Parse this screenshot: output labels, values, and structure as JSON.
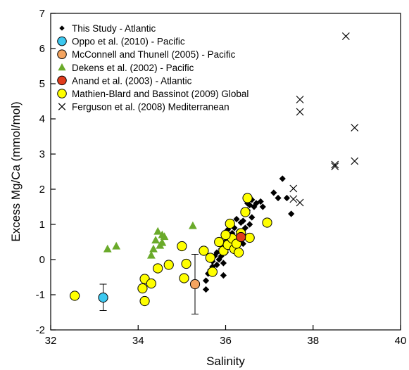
{
  "chart_data": {
    "type": "scatter",
    "xlabel": "Salinity",
    "ylabel": "Excess Mg/Ca (mmol/mol)",
    "xlim": [
      32,
      40
    ],
    "ylim": [
      -2,
      7
    ],
    "x_ticks": [
      32,
      34,
      36,
      38,
      40
    ],
    "y_ticks": [
      -2,
      -1,
      0,
      1,
      2,
      3,
      4,
      5,
      6,
      7
    ],
    "legend_position": "top-left",
    "series": [
      {
        "name": "This Study - Atlantic",
        "marker": "diamond",
        "color": "#000000",
        "points": [
          [
            35.55,
            -0.85
          ],
          [
            35.55,
            -0.6
          ],
          [
            35.6,
            -0.4
          ],
          [
            35.65,
            -0.3
          ],
          [
            35.7,
            -0.2
          ],
          [
            35.7,
            -0.05
          ],
          [
            35.8,
            -0.15
          ],
          [
            35.85,
            0.0
          ],
          [
            35.9,
            0.1
          ],
          [
            35.75,
            0.1
          ],
          [
            35.8,
            0.2
          ],
          [
            35.9,
            0.3
          ],
          [
            35.95,
            0.4
          ],
          [
            36.0,
            0.5
          ],
          [
            36.0,
            0.2
          ],
          [
            35.95,
            -0.1
          ],
          [
            36.1,
            0.6
          ],
          [
            36.1,
            0.45
          ],
          [
            36.15,
            0.75
          ],
          [
            36.2,
            0.9
          ],
          [
            36.2,
            0.35
          ],
          [
            36.3,
            0.8
          ],
          [
            36.3,
            0.55
          ],
          [
            36.35,
            1.05
          ],
          [
            36.4,
            1.1
          ],
          [
            36.4,
            0.45
          ],
          [
            36.45,
            1.3
          ],
          [
            36.45,
            0.9
          ],
          [
            36.5,
            1.6
          ],
          [
            36.5,
            1.4
          ],
          [
            36.55,
            1.55
          ],
          [
            36.55,
            1.0
          ],
          [
            36.6,
            1.2
          ],
          [
            36.6,
            1.7
          ],
          [
            36.65,
            1.5
          ],
          [
            36.7,
            1.6
          ],
          [
            36.8,
            1.65
          ],
          [
            36.85,
            1.5
          ],
          [
            37.1,
            1.9
          ],
          [
            37.2,
            1.75
          ],
          [
            37.3,
            2.3
          ],
          [
            37.4,
            1.75
          ],
          [
            37.5,
            1.3
          ],
          [
            35.85,
            0.55
          ],
          [
            36.05,
            0.85
          ],
          [
            35.65,
            0.05
          ],
          [
            36.25,
            1.15
          ],
          [
            35.95,
            -0.45
          ]
        ]
      },
      {
        "name": "Oppo et al. (2010) - Pacific",
        "marker": "circle",
        "color": "#3cc8f0",
        "points": [
          [
            33.2,
            -1.08
          ]
        ],
        "error_bars": [
          [
            -1.45,
            -0.7
          ]
        ]
      },
      {
        "name": "McConnell and Thunell (2005) - Pacific",
        "marker": "circle",
        "color": "#f4a460",
        "points": [
          [
            35.3,
            -0.7
          ]
        ],
        "error_bars": [
          [
            -1.55,
            0.15
          ]
        ]
      },
      {
        "name": "Dekens et al. (2002) - Pacific",
        "marker": "triangle",
        "color": "#6aaa2a",
        "points": [
          [
            33.3,
            0.3
          ],
          [
            33.5,
            0.38
          ],
          [
            34.3,
            0.12
          ],
          [
            34.35,
            0.3
          ],
          [
            34.4,
            0.55
          ],
          [
            34.45,
            0.8
          ],
          [
            34.5,
            0.4
          ],
          [
            34.55,
            0.7
          ],
          [
            34.6,
            0.65
          ],
          [
            34.55,
            0.48
          ],
          [
            35.25,
            0.96
          ]
        ]
      },
      {
        "name": "Anand et al. (2003) - Atlantic",
        "marker": "circle",
        "color": "#e03c1c",
        "points": [
          [
            36.35,
            0.64
          ]
        ]
      },
      {
        "name": "Mathien-Blard and Bassinot (2009) Global",
        "marker": "circle",
        "color": "#ffff00",
        "points": [
          [
            32.55,
            -1.03
          ],
          [
            34.1,
            -0.82
          ],
          [
            34.15,
            -0.55
          ],
          [
            34.15,
            -1.18
          ],
          [
            34.3,
            -0.68
          ],
          [
            34.45,
            -0.25
          ],
          [
            34.7,
            -0.15
          ],
          [
            35.0,
            0.38
          ],
          [
            35.05,
            -0.53
          ],
          [
            35.1,
            -0.12
          ],
          [
            35.5,
            0.25
          ],
          [
            35.7,
            -0.35
          ],
          [
            35.65,
            0.05
          ],
          [
            35.85,
            0.5
          ],
          [
            35.95,
            0.25
          ],
          [
            36.05,
            0.42
          ],
          [
            36.1,
            1.02
          ],
          [
            36.15,
            0.6
          ],
          [
            36.2,
            0.3
          ],
          [
            36.3,
            0.2
          ],
          [
            36.35,
            0.75
          ],
          [
            36.45,
            1.35
          ],
          [
            36.5,
            1.75
          ],
          [
            36.55,
            0.62
          ],
          [
            36.95,
            1.05
          ],
          [
            36.0,
            0.7
          ],
          [
            36.25,
            0.45
          ]
        ]
      },
      {
        "name": "Ferguson et al. (2008) Mediterranean",
        "marker": "x",
        "color": "#000000",
        "points": [
          [
            37.55,
            2.02
          ],
          [
            37.55,
            1.72
          ],
          [
            37.7,
            1.62
          ],
          [
            37.7,
            4.55
          ],
          [
            37.7,
            4.2
          ],
          [
            38.5,
            2.7
          ],
          [
            38.5,
            2.65
          ],
          [
            38.75,
            6.35
          ],
          [
            38.95,
            3.75
          ],
          [
            38.95,
            2.8
          ]
        ]
      }
    ]
  }
}
